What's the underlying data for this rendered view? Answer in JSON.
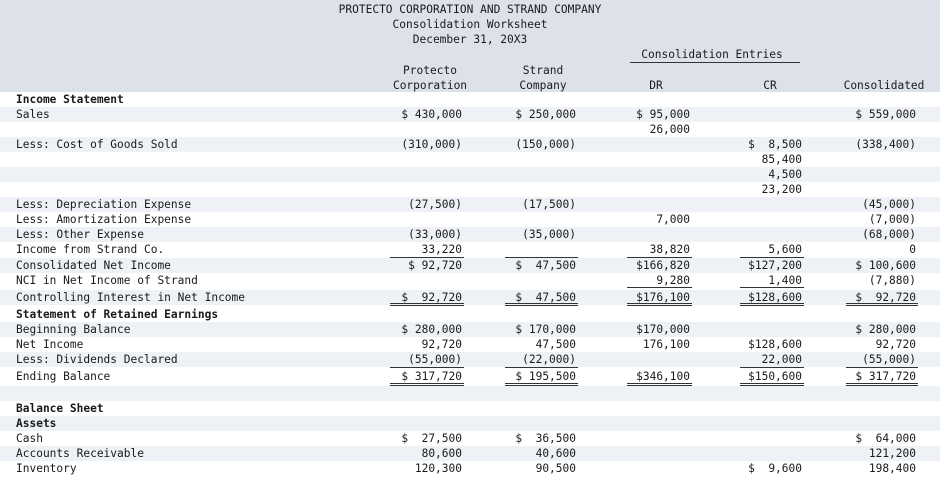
{
  "title": {
    "company": "PROTECTO CORPORATION AND STRAND COMPANY",
    "doc": "Consolidation Worksheet",
    "date": "December 31, 20X3"
  },
  "headers": {
    "entries": "Consolidation Entries",
    "protecto1": "Protecto",
    "protecto2": "Corporation",
    "strand1": "Strand",
    "strand2": "Company",
    "dr": "DR",
    "cr": "CR",
    "consolidated": "Consolidated"
  },
  "rows": [
    {
      "label": "Income Statement",
      "bold": true
    },
    {
      "label": "Sales",
      "p": "$ 430,000",
      "s": "$ 250,000",
      "dr": "$ 95,000",
      "c": "$ 559,000"
    },
    {
      "dr": "26,000"
    },
    {
      "label": "Less: Cost of Goods Sold",
      "p": "(310,000)",
      "s": "(150,000)",
      "cr": "$  8,500",
      "c": "(338,400)"
    },
    {
      "cr": "85,400"
    },
    {
      "cr": "4,500"
    },
    {
      "cr": "23,200"
    },
    {
      "label": "Less: Depreciation Expense",
      "p": "(27,500)",
      "s": "(17,500)",
      "c": "(45,000)"
    },
    {
      "label": "Less: Amortization Expense",
      "dr": "7,000",
      "c": "(7,000)"
    },
    {
      "label": "Less: Other Expense",
      "p": "(33,000)",
      "s": "(35,000)",
      "c": "(68,000)"
    },
    {
      "label": "Income from Strand Co.",
      "p": "33,220",
      "dr": "38,820",
      "cr": "5,600",
      "c": "0"
    },
    {
      "label": "Consolidated Net Income",
      "p": "$ 92,720",
      "s": "$  47,500",
      "dr": "$166,820",
      "cr": "$127,200",
      "c": "$ 100,600"
    },
    {
      "label": "NCI in Net Income of Strand",
      "dr": "9,280",
      "cr": "1,400",
      "c": "(7,880)"
    },
    {
      "label": "Controlling Interest in Net Income",
      "p": "$  92,720",
      "s": "$  47,500",
      "dr": "$176,100",
      "cr": "$128,600",
      "c": "$  92,720"
    },
    {
      "label": "Statement of Retained Earnings",
      "bold": true
    },
    {
      "label": "Beginning Balance",
      "p": "$ 280,000",
      "s": "$ 170,000",
      "dr": "$170,000",
      "c": "$ 280,000"
    },
    {
      "label": "Net Income",
      "p": "92,720",
      "s": "47,500",
      "dr": "176,100",
      "cr": "$128,600",
      "c": "92,720"
    },
    {
      "label": "Less: Dividends Declared",
      "p": "(55,000)",
      "s": "(22,000)",
      "cr": "22,000",
      "c": "(55,000)"
    },
    {
      "label": "Ending Balance",
      "p": "$ 317,720",
      "s": "$ 195,500",
      "dr": "$346,100",
      "cr": "$150,600",
      "c": "$ 317,720"
    },
    {},
    {
      "label": "Balance Sheet",
      "bold": true
    },
    {
      "label": "Assets",
      "bold": true
    },
    {
      "label": "Cash",
      "p": "$  27,500",
      "s": "$  36,500",
      "c": "$  64,000"
    },
    {
      "label": "Accounts Receivable",
      "p": "80,600",
      "s": "40,600",
      "c": "121,200"
    },
    {
      "label": "Inventory",
      "p": "120,300",
      "s": "90,500",
      "cr": "$  9,600",
      "c": "198,400"
    }
  ]
}
